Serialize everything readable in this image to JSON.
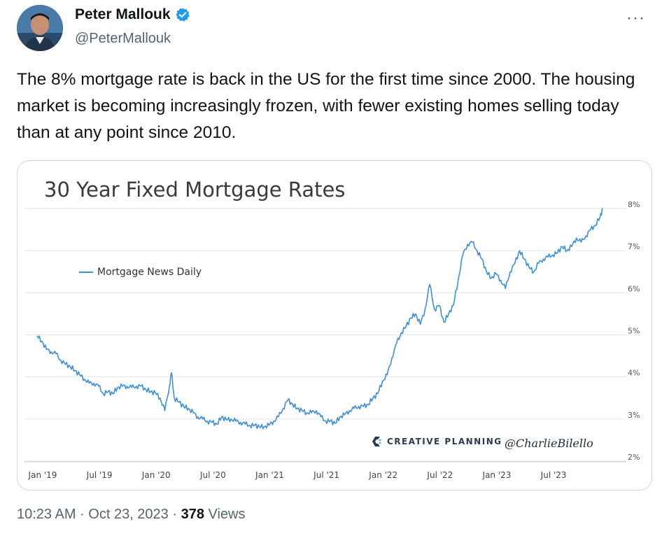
{
  "tweet": {
    "author_name": "Peter Mallouk",
    "handle": "@PeterMallouk",
    "more_icon": "more-horizontal-icon",
    "verified_icon": "verified-badge-icon",
    "text": "The 8% mortgage rate is back in the US for the first time since 2000. The housing market is becoming increasingly frozen, with fewer existing homes selling today than at any point since 2010.",
    "time": "10:23 AM · Oct 23, 2023 · ",
    "views_count": "378",
    "views_label": " Views"
  },
  "image": {
    "watermark_brand": "CREATIVE PLANNING",
    "watermark_handle": "@CharlieBilello"
  },
  "colors": {
    "line": "#3b8fdd",
    "verified": "#1d9bf0",
    "muted_text": "#536471"
  },
  "chart_data": {
    "type": "line",
    "title": "30 Year Fixed Mortgage Rates",
    "legend": [
      "Mortgage News Daily"
    ],
    "legend_placement": "top-left",
    "y_ticks": [
      "2%",
      "3%",
      "4%",
      "5%",
      "6%",
      "7%",
      "8%"
    ],
    "x_ticks": [
      "Jan '19",
      "Jul '19",
      "Jan '20",
      "Jul '20",
      "Jan '21",
      "Jul '21",
      "Jan '22",
      "Jul '22",
      "Jan '23",
      "Jul '23"
    ],
    "ylim": [
      2,
      8
    ],
    "y_axis_side": "right",
    "grid": true,
    "series": [
      {
        "name": "Mortgage News Daily",
        "x_unit": "months since Jan 2019",
        "points": [
          [
            0,
            4.98
          ],
          [
            0.5,
            4.85
          ],
          [
            1,
            4.65
          ],
          [
            1.5,
            4.6
          ],
          [
            2,
            4.55
          ],
          [
            2.5,
            4.4
          ],
          [
            3,
            4.3
          ],
          [
            3.5,
            4.25
          ],
          [
            4,
            4.15
          ],
          [
            4.5,
            4.05
          ],
          [
            5,
            3.95
          ],
          [
            5.5,
            3.85
          ],
          [
            6,
            3.85
          ],
          [
            6.5,
            3.78
          ],
          [
            7,
            3.6
          ],
          [
            7.5,
            3.65
          ],
          [
            8,
            3.6
          ],
          [
            8.5,
            3.75
          ],
          [
            9,
            3.78
          ],
          [
            9.5,
            3.78
          ],
          [
            10,
            3.75
          ],
          [
            10.5,
            3.78
          ],
          [
            11,
            3.78
          ],
          [
            11.5,
            3.7
          ],
          [
            12,
            3.65
          ],
          [
            12.5,
            3.62
          ],
          [
            13,
            3.5
          ],
          [
            13.5,
            3.2
          ],
          [
            14,
            3.8
          ],
          [
            14.2,
            4.1
          ],
          [
            14.5,
            3.5
          ],
          [
            15,
            3.4
          ],
          [
            15.5,
            3.3
          ],
          [
            16,
            3.25
          ],
          [
            16.5,
            3.15
          ],
          [
            17,
            3.05
          ],
          [
            17.5,
            3.0
          ],
          [
            18,
            2.95
          ],
          [
            18.5,
            2.92
          ],
          [
            19,
            2.88
          ],
          [
            19.5,
            3.05
          ],
          [
            20,
            2.98
          ],
          [
            20.5,
            3.0
          ],
          [
            21,
            2.95
          ],
          [
            21.5,
            2.92
          ],
          [
            22,
            2.88
          ],
          [
            22.5,
            2.85
          ],
          [
            23,
            2.85
          ],
          [
            23.5,
            2.82
          ],
          [
            24,
            2.82
          ],
          [
            24.5,
            2.85
          ],
          [
            25,
            2.95
          ],
          [
            25.5,
            3.05
          ],
          [
            26,
            3.25
          ],
          [
            26.5,
            3.45
          ],
          [
            27,
            3.35
          ],
          [
            27.5,
            3.25
          ],
          [
            28,
            3.2
          ],
          [
            28.5,
            3.15
          ],
          [
            29,
            3.15
          ],
          [
            29.5,
            3.2
          ],
          [
            30,
            3.05
          ],
          [
            30.5,
            2.95
          ],
          [
            31,
            2.95
          ],
          [
            31.5,
            2.9
          ],
          [
            32,
            3.05
          ],
          [
            32.5,
            3.1
          ],
          [
            33,
            3.2
          ],
          [
            33.5,
            3.25
          ],
          [
            34,
            3.3
          ],
          [
            34.5,
            3.3
          ],
          [
            35,
            3.35
          ],
          [
            35.5,
            3.5
          ],
          [
            36,
            3.6
          ],
          [
            36.5,
            3.9
          ],
          [
            37,
            4.05
          ],
          [
            37.5,
            4.45
          ],
          [
            38,
            4.8
          ],
          [
            38.5,
            5.05
          ],
          [
            39,
            5.2
          ],
          [
            39.5,
            5.4
          ],
          [
            40,
            5.5
          ],
          [
            40.5,
            5.25
          ],
          [
            41,
            5.6
          ],
          [
            41.5,
            6.2
          ],
          [
            42,
            5.6
          ],
          [
            42.5,
            5.7
          ],
          [
            43,
            5.3
          ],
          [
            43.5,
            5.5
          ],
          [
            44,
            5.7
          ],
          [
            44.5,
            6.3
          ],
          [
            45,
            6.9
          ],
          [
            45.5,
            7.15
          ],
          [
            46,
            7.2
          ],
          [
            46.5,
            7.0
          ],
          [
            47,
            6.8
          ],
          [
            47.5,
            6.5
          ],
          [
            48,
            6.35
          ],
          [
            48.5,
            6.45
          ],
          [
            49,
            6.3
          ],
          [
            49.5,
            6.1
          ],
          [
            50,
            6.5
          ],
          [
            50.5,
            6.7
          ],
          [
            51,
            7.0
          ],
          [
            51.5,
            6.8
          ],
          [
            52,
            6.6
          ],
          [
            52.5,
            6.5
          ],
          [
            53,
            6.7
          ],
          [
            53.5,
            6.8
          ],
          [
            54,
            6.85
          ],
          [
            54.5,
            6.9
          ],
          [
            55,
            6.95
          ],
          [
            55.5,
            7.1
          ],
          [
            56,
            7.0
          ],
          [
            56.5,
            7.1
          ],
          [
            57,
            7.3
          ],
          [
            57.5,
            7.2
          ],
          [
            58,
            7.35
          ],
          [
            58.5,
            7.5
          ],
          [
            59,
            7.6
          ],
          [
            59.5,
            7.8
          ],
          [
            59.8,
            8.0
          ]
        ]
      }
    ]
  }
}
